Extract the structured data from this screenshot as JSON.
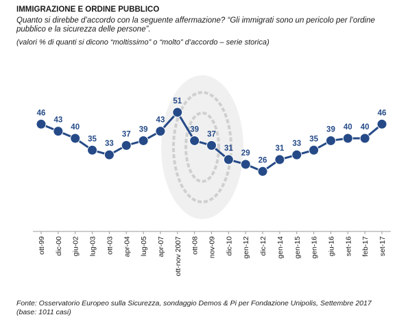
{
  "chart_data": {
    "type": "line",
    "title": "IMMIGRAZIONE E ORDINE PUBBLICO",
    "subtitle": "Quanto si direbbe d’accordo con la seguente affermazione?  “Gli immigrati sono un pericolo per l’ordine pubblico e la sicurezza delle persone”.",
    "note": "(valori % di quanti si dicono “moltissimo” o “molto” d’accordo – serie storica)",
    "source": "Fonte: Osservatorio Europeo sulla Sicurezza, sondaggio Demos & Pi per Fondazione Unipolis, Settembre 2017 (base: 1011 casi)",
    "categories": [
      "ott-99",
      "dic-00",
      "giu-02",
      "lug-03",
      "ott-03",
      "apr-04",
      "lug-05",
      "apr-07",
      "ott-nov 2007",
      "ott-08",
      "nov-09",
      "dic-10",
      "gen-12",
      "dic-12",
      "gen-14",
      "gen-15",
      "gen-16",
      "giu-16",
      "set-16",
      "feb-17",
      "set-17"
    ],
    "values": [
      46,
      43,
      40,
      35,
      33,
      37,
      39,
      43,
      51,
      39,
      37,
      31,
      29,
      26,
      31,
      33,
      35,
      39,
      40,
      40,
      46
    ],
    "color": "#254a87"
  }
}
